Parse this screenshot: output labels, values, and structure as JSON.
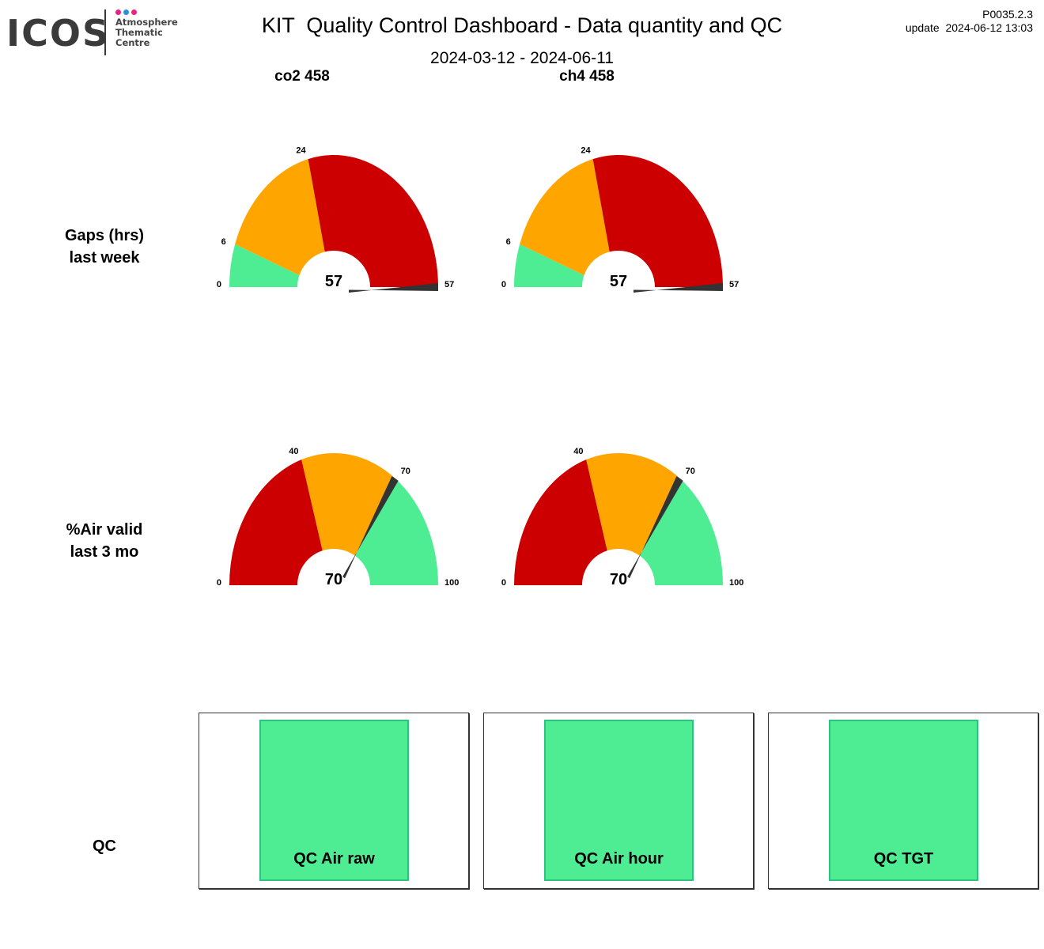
{
  "header": {
    "logo": {
      "word": "ICOS",
      "line1": "Atmosphere",
      "line2": "Thematic",
      "line3": "Centre",
      "dot_colors": [
        "#e6247e",
        "#2a8fe0",
        "#e6247e"
      ],
      "text_color": "#3a3a3a"
    },
    "title": "KIT  Quality Control Dashboard - Data quantity and QC",
    "date_range": "2024-03-12 - 2024-06-11",
    "version": "P0035.2.3",
    "update": "update  2024-06-12 13:03"
  },
  "columns": [
    "co2 458",
    "ch4 458"
  ],
  "rows": {
    "gaps": {
      "line1": "Gaps (hrs)",
      "line2": "last week"
    },
    "air": {
      "line1": "%Air valid",
      "line2": "last 3 mo"
    },
    "qc": {
      "label": "QC"
    }
  },
  "colors": {
    "green": "#4eed93",
    "orange": "#ffa500",
    "red": "#cc0000",
    "needle": "#333333",
    "qc_border": "#2ec27e"
  },
  "chart_data": [
    {
      "type": "gauge",
      "title": "co2 458",
      "row": "Gaps (hrs) last week",
      "min": 0,
      "max": 57,
      "value": 57,
      "value_label": "57",
      "ticks": [
        {
          "value": 0,
          "label": "0"
        },
        {
          "value": 6,
          "label": "6"
        },
        {
          "value": 24,
          "label": "24"
        },
        {
          "value": 57,
          "label": "57"
        }
      ],
      "bands": [
        {
          "from": 0,
          "to": 6,
          "color": "green"
        },
        {
          "from": 6,
          "to": 24,
          "color": "orange"
        },
        {
          "from": 24,
          "to": 57,
          "color": "red"
        }
      ]
    },
    {
      "type": "gauge",
      "title": "ch4 458",
      "row": "Gaps (hrs) last week",
      "min": 0,
      "max": 57,
      "value": 57,
      "value_label": "57",
      "ticks": [
        {
          "value": 0,
          "label": "0"
        },
        {
          "value": 6,
          "label": "6"
        },
        {
          "value": 24,
          "label": "24"
        },
        {
          "value": 57,
          "label": "57"
        }
      ],
      "bands": [
        {
          "from": 0,
          "to": 6,
          "color": "green"
        },
        {
          "from": 6,
          "to": 24,
          "color": "orange"
        },
        {
          "from": 24,
          "to": 57,
          "color": "red"
        }
      ]
    },
    {
      "type": "gauge",
      "title": "co2 458",
      "row": "%Air valid last 3 mo",
      "min": 0,
      "max": 100,
      "value": 70,
      "value_label": "70",
      "ticks": [
        {
          "value": 0,
          "label": "0"
        },
        {
          "value": 40,
          "label": "40"
        },
        {
          "value": 70,
          "label": "70"
        },
        {
          "value": 100,
          "label": "100"
        }
      ],
      "bands": [
        {
          "from": 0,
          "to": 40,
          "color": "red"
        },
        {
          "from": 40,
          "to": 70,
          "color": "orange"
        },
        {
          "from": 70,
          "to": 100,
          "color": "green"
        }
      ]
    },
    {
      "type": "gauge",
      "title": "ch4 458",
      "row": "%Air valid last 3 mo",
      "min": 0,
      "max": 100,
      "value": 70,
      "value_label": "70",
      "ticks": [
        {
          "value": 0,
          "label": "0"
        },
        {
          "value": 40,
          "label": "40"
        },
        {
          "value": 70,
          "label": "70"
        },
        {
          "value": 100,
          "label": "100"
        }
      ],
      "bands": [
        {
          "from": 0,
          "to": 40,
          "color": "red"
        },
        {
          "from": 40,
          "to": 70,
          "color": "orange"
        },
        {
          "from": 70,
          "to": 100,
          "color": "green"
        }
      ]
    }
  ],
  "qc_tiles": [
    {
      "label": "QC Air raw",
      "status": "green"
    },
    {
      "label": "QC Air hour",
      "status": "green"
    },
    {
      "label": "QC TGT",
      "status": "green"
    }
  ]
}
